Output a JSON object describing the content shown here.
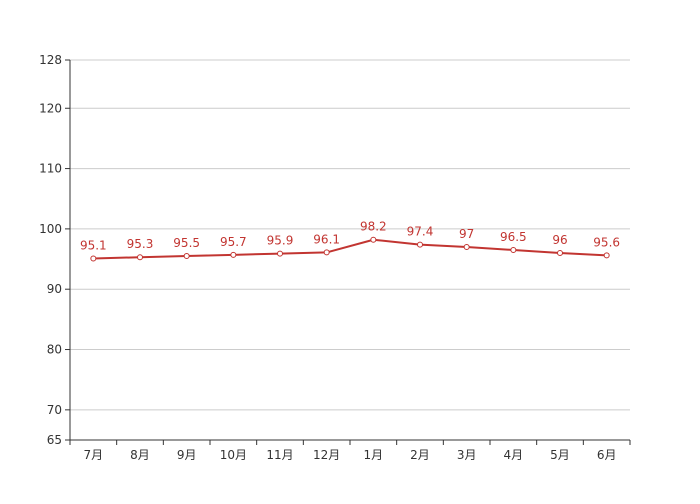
{
  "chart_data": {
    "type": "line",
    "categories": [
      "7月",
      "8月",
      "9月",
      "10月",
      "11月",
      "12月",
      "1月",
      "2月",
      "3月",
      "4月",
      "5月",
      "6月"
    ],
    "series": [
      {
        "values": [
          95.1,
          95.3,
          95.5,
          95.7,
          95.9,
          96.1,
          98.2,
          97.4,
          97,
          96.5,
          96,
          95.6
        ],
        "color": "#c23531"
      }
    ],
    "y_ticks": [
      65,
      70,
      80,
      90,
      100,
      110,
      120,
      128
    ],
    "ylim": [
      65,
      128
    ],
    "grid": true,
    "data_labels": true,
    "colors": {
      "axis": "#333333",
      "grid": "#cccccc",
      "series": "#c23531"
    }
  }
}
